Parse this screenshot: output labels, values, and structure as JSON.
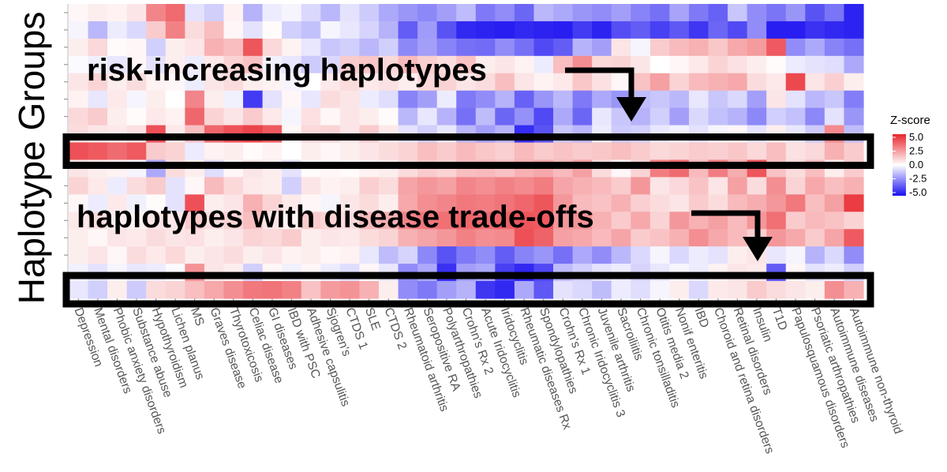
{
  "chart_data": {
    "type": "heatmap",
    "title": "",
    "ylabel": "Haplotype Groups",
    "xlabel": "",
    "colorbar": {
      "title": "Z-score",
      "ticks": [
        "5.0",
        "2.5",
        "0.0",
        "-2.5",
        "-5.0"
      ],
      "range": [
        -5,
        5
      ],
      "colors": {
        "low": "#1a10f0",
        "mid": "#ffffff",
        "high": "#e8262d"
      }
    },
    "columns": [
      "Depression",
      "Mental disorders",
      "Phobic anxiety disorders",
      "Substance abuse",
      "Hypothyroidism",
      "Lichen planus",
      "MS",
      "Graves disease",
      "Thyrotoxicosis",
      "Celiac disease",
      "GI diseases",
      "IBD with PSC",
      "Adhesive capsulitis",
      "Sjogren's",
      "CTDS 1",
      "SLE",
      "CTDS 2",
      "Rheumatoid arthritis",
      "Seropositive RA",
      "Polyarthropathies",
      "Crohn's Rx 2",
      "Acute Iridocyclitis",
      "Iridocyclitis",
      "Rheumatic diseases Rx",
      "Spondylopathies",
      "Crohn's Rx 1",
      "Chronic Iridocyclitis 3",
      "Juvenile arthritis",
      "Sacroiliitis",
      "Chronic tonsilladitis",
      "Otitis media 2",
      "Nonif enteritis",
      "IBD",
      "Choroid and retina disorders",
      "Retinal disorders",
      "Insulin",
      "T1D",
      "Papulosquamous disorders",
      "Psoriatic arthropathies",
      "Autoimmune diseases",
      "Autoimmune non-thyroid"
    ],
    "z": [
      [
        0.2,
        0.4,
        0.3,
        0.6,
        2.8,
        3.4,
        -0.6,
        -1.0,
        0.3,
        -1.6,
        -0.4,
        -0.2,
        -0.8,
        -1.5,
        -0.6,
        -1.1,
        -1.8,
        -2.2,
        -2.5,
        -2.0,
        -1.4,
        -2.8,
        -2.4,
        -3.2,
        -1.5,
        -1.8,
        -2.2,
        -2.4,
        -2.0,
        -2.6,
        -3.0,
        -1.9,
        -2.8,
        -3.3,
        -1.2,
        -2.4,
        -2.9,
        -2.2,
        -3.6,
        -2.9,
        -4.6
      ],
      [
        -0.2,
        -1.5,
        -0.4,
        -0.8,
        1.2,
        2.9,
        0.8,
        1.5,
        0.2,
        -0.6,
        0.1,
        -1.0,
        -1.3,
        -0.2,
        -0.5,
        -0.9,
        -1.6,
        -3.4,
        -2.1,
        -3.6,
        -4.5,
        -4.6,
        -4.7,
        -4.5,
        -4.6,
        -4.7,
        -4.1,
        -4.6,
        -3.7,
        -3.4,
        -4.0,
        -3.5,
        -4.2,
        -3.2,
        -3.8,
        -2.4,
        -4.7,
        -4.7,
        -4.3,
        -4.5,
        -4.6
      ],
      [
        0.4,
        0.9,
        0.1,
        0.2,
        -1.0,
        0.4,
        0.6,
        1.8,
        1.5,
        3.9,
        0.9,
        0.3,
        -0.5,
        -1.2,
        -1.0,
        -1.5,
        -1.0,
        -2.5,
        -2.0,
        -2.6,
        -3.0,
        -3.1,
        -2.4,
        -3.0,
        -3.8,
        -3.4,
        -1.6,
        -2.0,
        0.6,
        -0.2,
        1.2,
        1.6,
        1.8,
        1.3,
        2.0,
        2.3,
        3.8,
        -2.4,
        -1.8,
        -2.6,
        -3.0
      ],
      [
        -0.1,
        -0.3,
        -0.5,
        0.2,
        -0.6,
        0.4,
        -0.4,
        0.5,
        1.0,
        1.4,
        -0.3,
        -0.5,
        -1.1,
        -0.8,
        1.2,
        1.3,
        0.9,
        1.6,
        1.1,
        0.8,
        1.4,
        0.4,
        0.6,
        0.3,
        -0.4,
        1.5,
        2.6,
        0.9,
        1.0,
        0.6,
        0.0,
        0.2,
        0.5,
        1.0,
        0.7,
        0.4,
        0.1,
        -0.4,
        -0.6,
        -0.7,
        -1.8
      ],
      [
        0.6,
        1.0,
        0.4,
        0.8,
        0.3,
        0.2,
        -0.4,
        0.6,
        0.8,
        0.4,
        0.3,
        -0.2,
        0.0,
        0.5,
        0.8,
        0.5,
        0.7,
        0.4,
        0.9,
        1.0,
        0.6,
        0.8,
        1.5,
        0.6,
        0.3,
        0.5,
        1.3,
        0.7,
        0.2,
        1.4,
        2.2,
        1.0,
        1.6,
        1.8,
        2.0,
        0.8,
        0.5,
        4.2,
        0.6,
        1.1,
        0.4
      ],
      [
        0.3,
        -0.5,
        0.5,
        -0.2,
        0.4,
        0.0,
        2.8,
        0.4,
        -0.3,
        -4.1,
        -0.6,
        0.2,
        -0.5,
        0.8,
        0.6,
        -0.4,
        -0.7,
        -2.6,
        -2.0,
        -0.4,
        -2.8,
        -2.4,
        -1.6,
        -3.3,
        -2.2,
        -1.5,
        -2.8,
        -1.8,
        -2.2,
        -1.4,
        -1.2,
        -1.5,
        -0.5,
        -1.2,
        -0.8,
        -2.0,
        0.6,
        -0.6,
        -1.5,
        -1.2,
        -2.7
      ],
      [
        0.9,
        1.2,
        0.4,
        0.1,
        0.5,
        0.3,
        3.5,
        1.0,
        0.6,
        1.2,
        0.5,
        -0.2,
        0.7,
        0.2,
        0.6,
        0.4,
        0.1,
        -1.5,
        -0.5,
        -1.6,
        -3.0,
        -1.4,
        -3.2,
        -2.3,
        -3.8,
        -1.8,
        -3.2,
        -0.5,
        -1.2,
        -1.6,
        -1.0,
        -2.0,
        -0.8,
        -1.3,
        -1.6,
        -2.5,
        -1.0,
        -1.3,
        -2.5,
        -0.6,
        -2.2
      ],
      [
        0.8,
        0.6,
        0.5,
        0.7,
        4.0,
        0.5,
        1.5,
        3.5,
        4.0,
        4.3,
        3.8,
        0.2,
        0.9,
        1.0,
        0.6,
        1.2,
        0.5,
        -0.6,
        -1.0,
        -0.5,
        -1.5,
        -2.0,
        -1.6,
        -4.4,
        -3.6,
        -1.2,
        -1.5,
        -0.4,
        -1.1,
        -1.0,
        -0.5,
        -0.3,
        -0.6,
        -0.2,
        0.2,
        -0.6,
        0.4,
        -0.5,
        -1.1,
        2.7,
        -1.4
      ],
      [
        4.0,
        3.8,
        3.4,
        3.8,
        1.2,
        1.0,
        -0.4,
        0.3,
        0.4,
        0.1,
        0.3,
        0.0,
        0.4,
        0.2,
        0.4,
        0.6,
        0.8,
        1.0,
        1.5,
        1.2,
        1.6,
        1.3,
        1.1,
        1.6,
        1.2,
        1.4,
        1.2,
        1.3,
        1.5,
        1.2,
        0.9,
        1.0,
        1.2,
        1.1,
        1.3,
        0.9,
        1.5,
        0.7,
        0.9,
        1.8,
        1.2
      ],
      [
        0.6,
        0.4,
        0.3,
        -0.2,
        -1.8,
        0.8,
        0.4,
        -0.7,
        0.2,
        0.6,
        0.4,
        -0.6,
        0.1,
        0.2,
        0.1,
        0.3,
        0.4,
        0.8,
        1.2,
        1.0,
        1.5,
        1.6,
        1.4,
        1.8,
        2.0,
        1.6,
        2.2,
        0.8,
        0.2,
        1.0,
        3.0,
        3.4,
        1.6,
        3.0,
        1.9,
        3.9,
        1.4,
        0.8,
        1.5,
        0.4,
        1.2
      ],
      [
        1.0,
        0.5,
        -0.4,
        0.8,
        1.2,
        -0.6,
        0.2,
        1.6,
        0.9,
        0.5,
        0.4,
        -1.0,
        0.6,
        0.3,
        0.4,
        1.1,
        0.8,
        2.1,
        2.4,
        2.2,
        2.8,
        2.6,
        2.9,
        2.7,
        3.0,
        2.1,
        1.8,
        1.6,
        1.2,
        2.4,
        0.6,
        0.9,
        1.4,
        0.6,
        2.2,
        0.8,
        2.6,
        1.0,
        2.0,
        1.5,
        1.8
      ],
      [
        0.2,
        -0.4,
        0.5,
        -0.3,
        0.1,
        -0.6,
        4.0,
        0.4,
        0.6,
        1.8,
        1.0,
        0.5,
        0.2,
        -0.2,
        0.6,
        0.8,
        0.4,
        2.0,
        2.6,
        2.8,
        3.1,
        3.0,
        3.2,
        3.5,
        3.9,
        2.4,
        1.6,
        1.4,
        1.8,
        1.1,
        0.8,
        0.6,
        1.2,
        0.8,
        1.6,
        1.9,
        2.4,
        3.1,
        1.5,
        2.2,
        4.5
      ],
      [
        0.5,
        0.8,
        0.4,
        0.3,
        0.6,
        0.5,
        1.2,
        0.8,
        1.0,
        1.5,
        0.6,
        0.3,
        1.2,
        1.0,
        0.8,
        1.6,
        1.8,
        2.8,
        3.1,
        3.3,
        3.5,
        3.4,
        3.6,
        3.9,
        3.8,
        2.4,
        2.5,
        1.8,
        1.2,
        2.0,
        1.0,
        2.4,
        1.8,
        2.2,
        1.6,
        2.4,
        3.3,
        1.2,
        1.6,
        1.4,
        1.0
      ],
      [
        0.4,
        0.2,
        0.6,
        0.5,
        0.8,
        0.6,
        0.7,
        0.4,
        0.6,
        1.0,
        0.9,
        1.2,
        0.4,
        0.6,
        0.5,
        0.8,
        1.0,
        1.8,
        2.1,
        2.4,
        2.9,
        2.6,
        2.7,
        4.0,
        3.6,
        2.2,
        2.0,
        1.6,
        2.1,
        1.2,
        1.4,
        1.8,
        2.6,
        2.0,
        1.6,
        1.1,
        2.4,
        2.0,
        1.2,
        2.1,
        3.8
      ],
      [
        0.4,
        0.6,
        0.2,
        0.8,
        0.5,
        0.9,
        0.4,
        0.6,
        0.8,
        0.4,
        0.6,
        0.3,
        0.4,
        0.2,
        0.3,
        -0.5,
        -1.4,
        -0.9,
        -2.5,
        -3.6,
        -2.8,
        -2.4,
        -3.4,
        -2.6,
        -2.2,
        -3.0,
        -1.8,
        -2.4,
        -1.5,
        -0.8,
        -0.2,
        -0.8,
        -0.4,
        -0.6,
        0.4,
        0.6,
        -0.5,
        -0.2,
        -1.6,
        -0.8,
        -2.4
      ],
      [
        -0.3,
        -0.6,
        -0.2,
        -0.5,
        -0.4,
        -0.1,
        2.5,
        0.6,
        0.4,
        -1.0,
        0.2,
        -0.3,
        0.2,
        -0.4,
        -0.7,
        0.2,
        -0.5,
        -2.4,
        -1.8,
        -4.3,
        -2.0,
        -1.8,
        -4.0,
        -4.5,
        -3.8,
        -1.4,
        -1.0,
        -0.6,
        -0.4,
        -0.9,
        -0.5,
        -0.2,
        -0.4,
        0.3,
        0.6,
        0.5,
        -3.4,
        0.2,
        -0.6,
        -0.4,
        -1.0
      ],
      [
        -0.5,
        -1.0,
        0.4,
        -1.1,
        0.8,
        1.0,
        1.5,
        2.0,
        2.6,
        3.1,
        3.2,
        2.9,
        1.4,
        2.3,
        2.5,
        1.8,
        0.4,
        -2.4,
        -2.8,
        -2.0,
        -1.6,
        -4.2,
        -4.5,
        -1.8,
        -3.5,
        -0.6,
        -0.8,
        -1.4,
        -0.4,
        -0.7,
        -0.2,
        0.4,
        -0.8,
        0.5,
        0.6,
        1.2,
        0.8,
        0.6,
        0.4,
        2.6,
        1.8
      ]
    ],
    "annotations": [
      {
        "text": "risk-increasing haplotypes",
        "target_row": 8
      },
      {
        "text": "haplotypes with disease trade-offs",
        "target_row": 16
      }
    ]
  }
}
